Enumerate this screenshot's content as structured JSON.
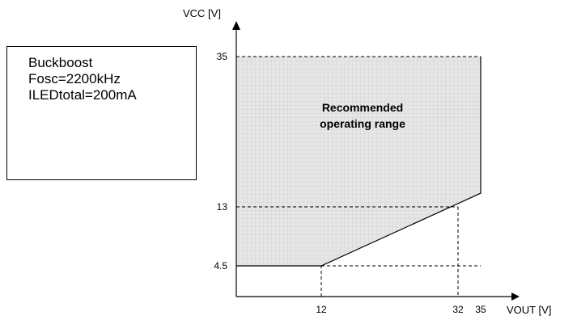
{
  "conditions": [
    "Buckboost",
    "Fosc=2200kHz",
    "ILEDtotal=200mA"
  ],
  "chart_data": {
    "type": "area",
    "xlabel": "VOUT [V]",
    "ylabel": "VCC [V]",
    "x_ticks": [
      "12",
      "32",
      "35"
    ],
    "y_ticks": [
      "35",
      "13",
      "4.5"
    ],
    "region_label": [
      "Recommended",
      "operating range"
    ],
    "boundary_lower": {
      "x": [
        0,
        12,
        35
      ],
      "y": [
        4.5,
        4.5,
        15
      ]
    },
    "boundary_upper_y": 35,
    "boundary_right_x": 35,
    "reference_points": [
      {
        "x": 32,
        "y": 13
      }
    ],
    "region_fill": "#e6e6e6",
    "grid_color": "#c4c4c4"
  }
}
